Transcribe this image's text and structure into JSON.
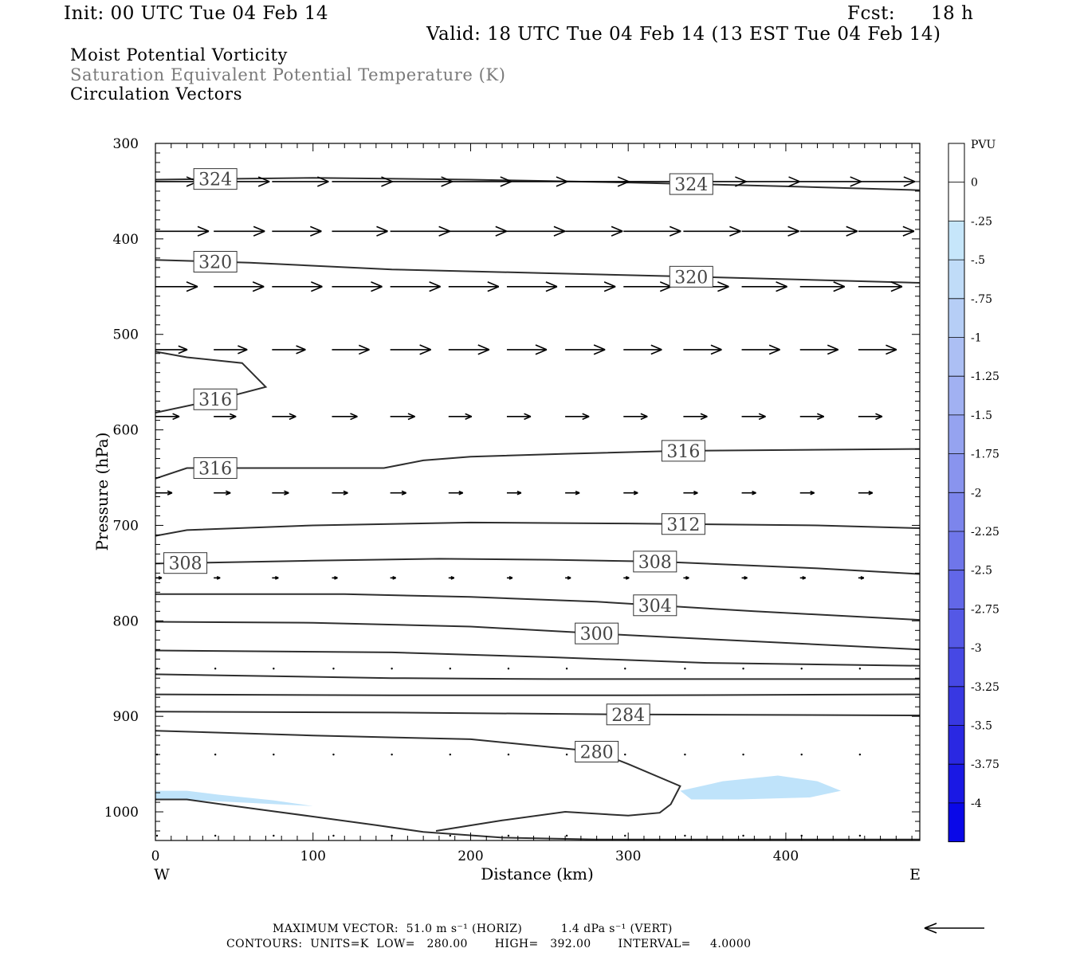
{
  "header": {
    "init": "Init: 00 UTC Tue 04 Feb 14",
    "fcst_label": "Fcst:",
    "fcst_value": "18 h",
    "valid": "Valid: 18 UTC Tue 04 Feb 14 (13 EST Tue 04 Feb 14)"
  },
  "fields": {
    "line1": "Moist Potential Vorticity",
    "line2": "Saturation Equivalent Potential Temperature (K)",
    "line3": "Circulation Vectors"
  },
  "footer": {
    "max_vector": "MAXIMUM VECTOR:  51.0 m s⁻¹ (HORIZ)          1.4 dPa s⁻¹ (VERT)",
    "contours": "CONTOURS:  UNITS=K  LOW=   280.00       HIGH=   392.00       INTERVAL=     4.0000"
  },
  "chart_data": {
    "type": "cross-section",
    "xlabel": "Distance (km)",
    "ylabel": "Pressure (hPa)",
    "xlim": [
      0,
      485
    ],
    "ylim": [
      1030,
      300
    ],
    "x_ticks": [
      0,
      100,
      200,
      300,
      400
    ],
    "y_ticks": [
      300,
      400,
      500,
      600,
      700,
      800,
      900,
      1000
    ],
    "x_ends": {
      "left": "W",
      "right": "E"
    },
    "colorbar": {
      "unit": "PVU",
      "labels": [
        "0",
        "-.25",
        "-.5",
        "-.75",
        "-1",
        "-1.25",
        "-1.5",
        "-1.75",
        "-2",
        "-2.25",
        "-2.5",
        "-2.75",
        "-3",
        "-3.25",
        "-3.5",
        "-3.75",
        "-4"
      ],
      "colors": [
        "#ffffff",
        "#ffffff",
        "#c6e6fa",
        "#c0dcf8",
        "#b6cef6",
        "#acbff4",
        "#a1b1f2",
        "#95a3f0",
        "#8994ee",
        "#7c85ec",
        "#6f76ea",
        "#6267e8",
        "#5458e6",
        "#4648e4",
        "#3838e2",
        "#2a28e2",
        "#1a18e4",
        "#0a08e8"
      ]
    },
    "contours": [
      {
        "label": "324",
        "points": [
          [
            0,
            338
          ],
          [
            100,
            336
          ],
          [
            200,
            338
          ],
          [
            300,
            341
          ],
          [
            400,
            345
          ],
          [
            485,
            349
          ]
        ]
      },
      {
        "label": "320",
        "points": [
          [
            0,
            422
          ],
          [
            60,
            425
          ],
          [
            150,
            432
          ],
          [
            250,
            436
          ],
          [
            350,
            440
          ],
          [
            485,
            446
          ]
        ]
      },
      {
        "label": "316",
        "points": [
          [
            0,
            518
          ],
          [
            20,
            524
          ],
          [
            55,
            530
          ],
          [
            70,
            555
          ],
          [
            40,
            568
          ],
          [
            0,
            582
          ]
        ]
      },
      {
        "label": "316",
        "points": [
          [
            0,
            651
          ],
          [
            20,
            640
          ],
          [
            80,
            640
          ],
          [
            145,
            640
          ],
          [
            170,
            632
          ],
          [
            200,
            628
          ],
          [
            260,
            625
          ],
          [
            330,
            622
          ],
          [
            485,
            620
          ]
        ]
      },
      {
        "label": "312",
        "points": [
          [
            0,
            711
          ],
          [
            20,
            705
          ],
          [
            100,
            700
          ],
          [
            200,
            697
          ],
          [
            300,
            698
          ],
          [
            420,
            700
          ],
          [
            485,
            703
          ]
        ]
      },
      {
        "label": "308",
        "points": [
          [
            0,
            740
          ],
          [
            100,
            737
          ],
          [
            180,
            735
          ],
          [
            250,
            736
          ],
          [
            320,
            738
          ],
          [
            420,
            745
          ],
          [
            485,
            751
          ]
        ]
      },
      {
        "label": "304",
        "points": [
          [
            0,
            772
          ],
          [
            120,
            772
          ],
          [
            200,
            775
          ],
          [
            280,
            780
          ],
          [
            380,
            790
          ],
          [
            485,
            799
          ]
        ]
      },
      {
        "label": "300",
        "points": [
          [
            0,
            801
          ],
          [
            100,
            802
          ],
          [
            200,
            806
          ],
          [
            300,
            815
          ],
          [
            350,
            819
          ],
          [
            485,
            830
          ]
        ]
      },
      {
        "label": "",
        "points": [
          [
            0,
            831
          ],
          [
            150,
            833
          ],
          [
            250,
            838
          ],
          [
            350,
            844
          ],
          [
            485,
            847
          ]
        ]
      },
      {
        "label": "",
        "points": [
          [
            0,
            856
          ],
          [
            150,
            860
          ],
          [
            250,
            861
          ],
          [
            485,
            861
          ]
        ]
      },
      {
        "label": "",
        "points": [
          [
            0,
            877
          ],
          [
            150,
            878
          ],
          [
            300,
            878
          ],
          [
            485,
            877
          ]
        ]
      },
      {
        "label": "284",
        "points": [
          [
            0,
            895
          ],
          [
            150,
            896
          ],
          [
            300,
            898
          ],
          [
            485,
            899
          ]
        ]
      },
      {
        "label": "280",
        "points": [
          [
            0,
            915
          ],
          [
            100,
            920
          ],
          [
            200,
            924
          ],
          [
            280,
            937
          ],
          [
            300,
            950
          ],
          [
            333,
            973
          ],
          [
            327,
            992
          ],
          [
            320,
            1001
          ],
          [
            300,
            1004
          ],
          [
            260,
            1000
          ],
          [
            220,
            1009
          ],
          [
            178,
            1020
          ]
        ]
      },
      {
        "label": "",
        "points": [
          [
            0,
            987
          ],
          [
            20,
            987
          ],
          [
            50,
            994
          ],
          [
            100,
            1005
          ],
          [
            140,
            1014
          ],
          [
            170,
            1021
          ],
          [
            220,
            1027
          ],
          [
            280,
            1029
          ],
          [
            485,
            1029
          ]
        ]
      }
    ],
    "pv_shading": [
      {
        "range": [
          0,
          -0.25
        ],
        "points": [
          [
            333,
            978
          ],
          [
            360,
            968
          ],
          [
            395,
            962
          ],
          [
            420,
            968
          ],
          [
            435,
            978
          ],
          [
            415,
            985
          ],
          [
            370,
            987
          ],
          [
            340,
            987
          ]
        ]
      },
      {
        "range": [
          0,
          -0.25
        ],
        "points": [
          [
            0,
            978
          ],
          [
            20,
            978
          ],
          [
            40,
            982
          ],
          [
            75,
            988
          ],
          [
            100,
            994
          ],
          [
            40,
            989
          ],
          [
            0,
            987
          ]
        ]
      }
    ],
    "vectors": {
      "x": [
        0,
        37,
        74,
        112,
        149,
        186,
        223,
        260,
        297,
        335,
        372,
        409,
        446
      ],
      "levels": [
        {
          "p": 340,
          "u": [
            5.3,
            7.0,
            7.1,
            7.6,
            7.8,
            7.9,
            7.6,
            8.0,
            7.6,
            7.9,
            7.3,
            7.7,
            7.1
          ]
        },
        {
          "p": 392,
          "u": [
            6.7,
            6.4,
            6.2,
            7.0,
            7.5,
            7.3,
            7.3,
            7.2,
            7.2,
            7.2,
            7.2,
            7.2,
            7.0
          ]
        },
        {
          "p": 450,
          "u": [
            5.3,
            6.3,
            6.3,
            6.3,
            6.3,
            6.3,
            6.3,
            6.3,
            6.0,
            5.7,
            5.7,
            5.6,
            5.5
          ]
        },
        {
          "p": 516,
          "u": [
            4.0,
            4.2,
            4.2,
            4.7,
            5.1,
            5.1,
            5.0,
            5.0,
            4.8,
            4.8,
            4.8,
            4.8,
            4.8
          ]
        },
        {
          "p": 586,
          "u": [
            3.0,
            2.8,
            3.0,
            3.2,
            3.1,
            2.9,
            3.0,
            3.0,
            3.0,
            3.0,
            3.0,
            3.0,
            3.0
          ]
        },
        {
          "p": 666,
          "u": [
            2.1,
            2.1,
            2.1,
            2.0,
            2.0,
            1.8,
            1.8,
            1.8,
            1.8,
            1.8,
            1.8,
            1.8,
            1.8
          ]
        },
        {
          "p": 755,
          "u": [
            0.8,
            0.8,
            0.8,
            0.7,
            0.7,
            0.7,
            0.7,
            0.7,
            0.7,
            0.7,
            0.7,
            0.7,
            0.7
          ]
        },
        {
          "p": 850,
          "u": [
            0,
            0,
            0,
            0,
            0,
            0,
            0,
            0,
            0,
            0,
            0,
            0,
            0
          ]
        },
        {
          "p": 940,
          "u": [
            0,
            0,
            0,
            0,
            0,
            0,
            0,
            0,
            0,
            0,
            0,
            0,
            0
          ]
        },
        {
          "p": 1025,
          "u": [
            0,
            0,
            0,
            0,
            0,
            0,
            0,
            0,
            0,
            0,
            0,
            0,
            0
          ]
        }
      ]
    }
  }
}
